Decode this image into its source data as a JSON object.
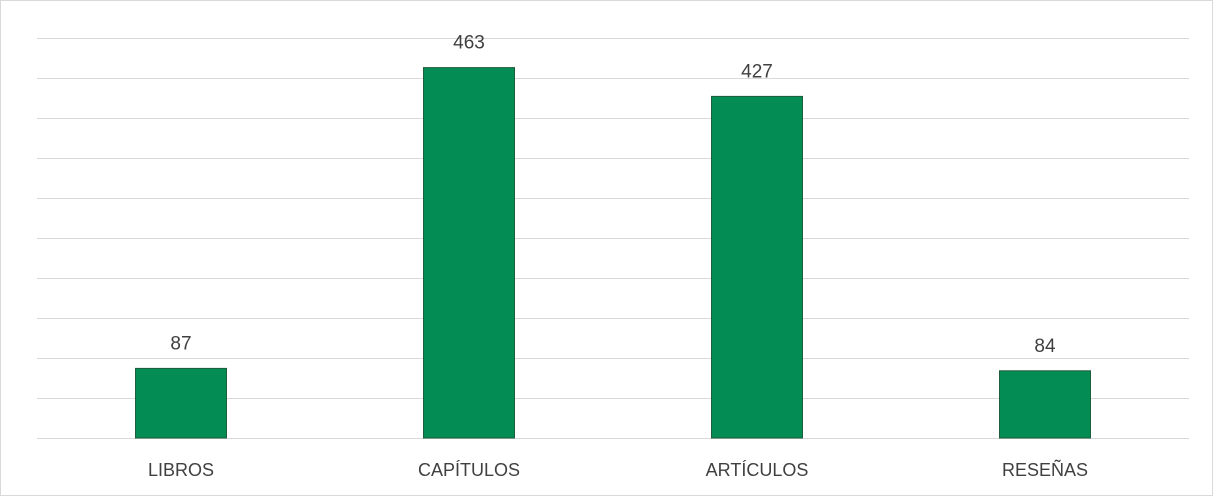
{
  "chart_data": {
    "type": "bar",
    "categories": [
      "LIBROS",
      "CAPÍTULOS",
      "ARTÍCULOS",
      "RESEÑAS"
    ],
    "values": [
      87,
      463,
      427,
      84
    ],
    "title": "",
    "xlabel": "",
    "ylabel": "",
    "ylim": [
      0,
      500
    ],
    "grid": true,
    "legend": "none",
    "colors": {
      "bar": "#038c54",
      "grid": "#d9d9d9",
      "text": "#404040"
    }
  }
}
